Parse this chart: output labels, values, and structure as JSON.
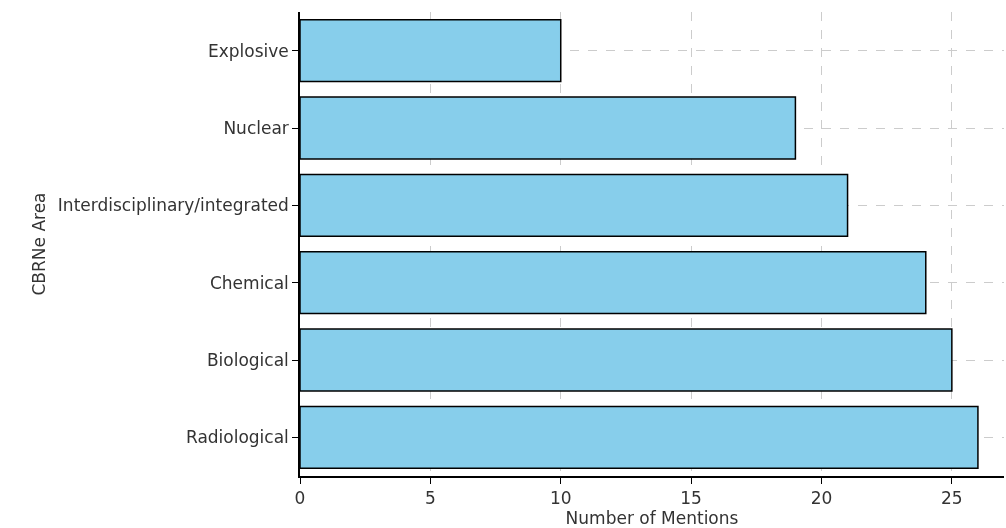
{
  "chart_data": {
    "type": "bar",
    "orientation": "horizontal",
    "xlabel": "Number of Mentions",
    "ylabel": "CBRNe Area",
    "categories": [
      "Explosive",
      "Nuclear",
      "Interdisciplinary/integrated",
      "Chemical",
      "Biological",
      "Radiological"
    ],
    "values": [
      10,
      19,
      21,
      24,
      25,
      26
    ],
    "color": "#87ceeb",
    "xlim": [
      0,
      27
    ],
    "xticks": [
      0,
      5,
      10,
      15,
      20,
      25
    ],
    "grid": true
  }
}
